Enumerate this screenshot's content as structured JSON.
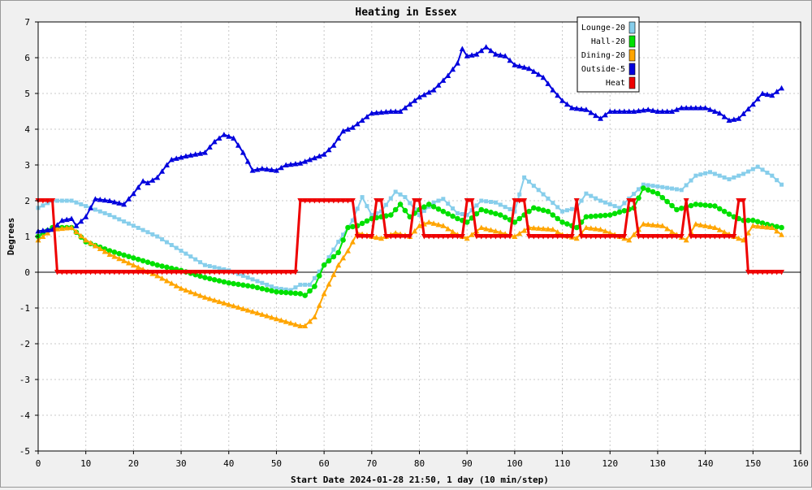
{
  "chart_data": {
    "type": "line",
    "title": "Heating in Essex",
    "xlabel": "Start Date 2024-01-28 21:50, 1 day (10 min/step)",
    "ylabel": "Degrees",
    "xlim": [
      0,
      160
    ],
    "ylim": [
      -5,
      7
    ],
    "x_ticks": [
      0,
      10,
      20,
      30,
      40,
      50,
      60,
      70,
      80,
      90,
      100,
      110,
      120,
      130,
      140,
      150,
      160
    ],
    "y_ticks": [
      -5,
      -4,
      -3,
      -2,
      -1,
      0,
      1,
      2,
      3,
      4,
      5,
      6,
      7
    ],
    "grid": true,
    "legend_position": "top-right",
    "series": [
      {
        "name": "Lounge-20",
        "color": "#87ceeb",
        "marker": "square",
        "points": [
          [
            0,
            1.8
          ],
          [
            3,
            2.0
          ],
          [
            7,
            2.0
          ],
          [
            10,
            1.85
          ],
          [
            15,
            1.6
          ],
          [
            20,
            1.3
          ],
          [
            25,
            1.0
          ],
          [
            30,
            0.6
          ],
          [
            35,
            0.2
          ],
          [
            40,
            0.05
          ],
          [
            45,
            -0.2
          ],
          [
            50,
            -0.45
          ],
          [
            53,
            -0.5
          ],
          [
            55,
            -0.35
          ],
          [
            57,
            -0.35
          ],
          [
            60,
            0.2
          ],
          [
            63,
            0.85
          ],
          [
            66,
            1.45
          ],
          [
            68,
            2.1
          ],
          [
            70,
            1.6
          ],
          [
            72,
            1.7
          ],
          [
            75,
            2.25
          ],
          [
            77,
            2.1
          ],
          [
            80,
            1.6
          ],
          [
            83,
            1.95
          ],
          [
            85,
            2.05
          ],
          [
            88,
            1.65
          ],
          [
            90,
            1.6
          ],
          [
            93,
            2.0
          ],
          [
            96,
            1.95
          ],
          [
            100,
            1.7
          ],
          [
            102,
            2.65
          ],
          [
            105,
            2.3
          ],
          [
            110,
            1.7
          ],
          [
            113,
            1.8
          ],
          [
            115,
            2.2
          ],
          [
            118,
            2.0
          ],
          [
            122,
            1.8
          ],
          [
            127,
            2.45
          ],
          [
            130,
            2.4
          ],
          [
            135,
            2.3
          ],
          [
            138,
            2.7
          ],
          [
            141,
            2.8
          ],
          [
            145,
            2.6
          ],
          [
            148,
            2.75
          ],
          [
            151,
            2.95
          ],
          [
            154,
            2.7
          ],
          [
            156,
            2.45
          ]
        ]
      },
      {
        "name": "Hall-20",
        "color": "#00e000",
        "marker": "circle",
        "points": [
          [
            0,
            1.0
          ],
          [
            3,
            1.25
          ],
          [
            7,
            1.25
          ],
          [
            10,
            0.85
          ],
          [
            15,
            0.6
          ],
          [
            20,
            0.4
          ],
          [
            25,
            0.2
          ],
          [
            30,
            0.05
          ],
          [
            35,
            -0.15
          ],
          [
            40,
            -0.3
          ],
          [
            45,
            -0.4
          ],
          [
            50,
            -0.55
          ],
          [
            55,
            -0.6
          ],
          [
            56,
            -0.65
          ],
          [
            58,
            -0.4
          ],
          [
            60,
            0.2
          ],
          [
            63,
            0.55
          ],
          [
            65,
            1.25
          ],
          [
            67,
            1.3
          ],
          [
            70,
            1.5
          ],
          [
            74,
            1.6
          ],
          [
            76,
            1.9
          ],
          [
            78,
            1.55
          ],
          [
            80,
            1.75
          ],
          [
            82,
            1.9
          ],
          [
            85,
            1.7
          ],
          [
            88,
            1.5
          ],
          [
            90,
            1.4
          ],
          [
            93,
            1.75
          ],
          [
            97,
            1.6
          ],
          [
            100,
            1.4
          ],
          [
            104,
            1.8
          ],
          [
            107,
            1.7
          ],
          [
            110,
            1.4
          ],
          [
            113,
            1.25
          ],
          [
            115,
            1.55
          ],
          [
            120,
            1.6
          ],
          [
            125,
            1.8
          ],
          [
            127,
            2.35
          ],
          [
            130,
            2.2
          ],
          [
            134,
            1.75
          ],
          [
            138,
            1.9
          ],
          [
            142,
            1.85
          ],
          [
            146,
            1.55
          ],
          [
            148,
            1.45
          ],
          [
            150,
            1.45
          ],
          [
            154,
            1.3
          ],
          [
            156,
            1.25
          ]
        ]
      },
      {
        "name": "Dining-20",
        "color": "#ffa500",
        "marker": "triangle",
        "points": [
          [
            0,
            0.9
          ],
          [
            3,
            1.2
          ],
          [
            7,
            1.25
          ],
          [
            10,
            0.9
          ],
          [
            15,
            0.5
          ],
          [
            20,
            0.2
          ],
          [
            25,
            -0.1
          ],
          [
            30,
            -0.45
          ],
          [
            35,
            -0.7
          ],
          [
            40,
            -0.9
          ],
          [
            45,
            -1.1
          ],
          [
            50,
            -1.3
          ],
          [
            55,
            -1.5
          ],
          [
            56,
            -1.5
          ],
          [
            58,
            -1.25
          ],
          [
            60,
            -0.6
          ],
          [
            63,
            0.2
          ],
          [
            65,
            0.6
          ],
          [
            67,
            1.1
          ],
          [
            70,
            1.0
          ],
          [
            72,
            0.95
          ],
          [
            75,
            1.1
          ],
          [
            78,
            1.0
          ],
          [
            80,
            1.3
          ],
          [
            82,
            1.4
          ],
          [
            85,
            1.3
          ],
          [
            88,
            1.05
          ],
          [
            90,
            0.95
          ],
          [
            93,
            1.25
          ],
          [
            96,
            1.15
          ],
          [
            100,
            1.0
          ],
          [
            103,
            1.25
          ],
          [
            108,
            1.2
          ],
          [
            110,
            1.05
          ],
          [
            113,
            0.95
          ],
          [
            115,
            1.25
          ],
          [
            118,
            1.2
          ],
          [
            122,
            1.0
          ],
          [
            124,
            0.9
          ],
          [
            127,
            1.35
          ],
          [
            131,
            1.3
          ],
          [
            134,
            1.05
          ],
          [
            136,
            0.9
          ],
          [
            138,
            1.35
          ],
          [
            142,
            1.25
          ],
          [
            146,
            1.0
          ],
          [
            148,
            0.9
          ],
          [
            150,
            1.3
          ],
          [
            154,
            1.25
          ],
          [
            156,
            1.05
          ]
        ]
      },
      {
        "name": "Outside-5",
        "color": "#0000dd",
        "marker": "triangle",
        "points": [
          [
            0,
            1.15
          ],
          [
            3,
            1.2
          ],
          [
            5,
            1.45
          ],
          [
            7,
            1.5
          ],
          [
            8,
            1.3
          ],
          [
            10,
            1.55
          ],
          [
            12,
            2.05
          ],
          [
            15,
            2.0
          ],
          [
            18,
            1.9
          ],
          [
            20,
            2.2
          ],
          [
            22,
            2.55
          ],
          [
            23,
            2.5
          ],
          [
            25,
            2.65
          ],
          [
            27,
            3.0
          ],
          [
            28,
            3.15
          ],
          [
            31,
            3.25
          ],
          [
            35,
            3.35
          ],
          [
            37,
            3.65
          ],
          [
            39,
            3.85
          ],
          [
            41,
            3.75
          ],
          [
            43,
            3.35
          ],
          [
            45,
            2.85
          ],
          [
            47,
            2.9
          ],
          [
            50,
            2.85
          ],
          [
            52,
            3.0
          ],
          [
            55,
            3.05
          ],
          [
            60,
            3.3
          ],
          [
            62,
            3.55
          ],
          [
            64,
            3.95
          ],
          [
            66,
            4.05
          ],
          [
            70,
            4.45
          ],
          [
            74,
            4.5
          ],
          [
            76,
            4.5
          ],
          [
            80,
            4.9
          ],
          [
            83,
            5.1
          ],
          [
            86,
            5.5
          ],
          [
            88,
            5.85
          ],
          [
            89,
            6.25
          ],
          [
            90,
            6.05
          ],
          [
            92,
            6.1
          ],
          [
            94,
            6.3
          ],
          [
            96,
            6.1
          ],
          [
            98,
            6.05
          ],
          [
            100,
            5.8
          ],
          [
            103,
            5.7
          ],
          [
            106,
            5.45
          ],
          [
            108,
            5.1
          ],
          [
            110,
            4.8
          ],
          [
            112,
            4.6
          ],
          [
            115,
            4.55
          ],
          [
            118,
            4.3
          ],
          [
            120,
            4.5
          ],
          [
            125,
            4.5
          ],
          [
            128,
            4.55
          ],
          [
            130,
            4.5
          ],
          [
            133,
            4.5
          ],
          [
            135,
            4.6
          ],
          [
            140,
            4.6
          ],
          [
            143,
            4.45
          ],
          [
            145,
            4.25
          ],
          [
            147,
            4.3
          ],
          [
            150,
            4.7
          ],
          [
            152,
            5.0
          ],
          [
            154,
            4.95
          ],
          [
            156,
            5.15
          ]
        ]
      },
      {
        "name": "Heat",
        "color": "#ee0000",
        "marker": "triangle-down",
        "points": [
          [
            0,
            2
          ],
          [
            3,
            2
          ],
          [
            4,
            0
          ],
          [
            54,
            0
          ],
          [
            55,
            2
          ],
          [
            66,
            2
          ],
          [
            67,
            1
          ],
          [
            70,
            1
          ],
          [
            71,
            2
          ],
          [
            72,
            2
          ],
          [
            73,
            1
          ],
          [
            78,
            1
          ],
          [
            79,
            2
          ],
          [
            80,
            2
          ],
          [
            81,
            1
          ],
          [
            89,
            1
          ],
          [
            90,
            2
          ],
          [
            91,
            2
          ],
          [
            92,
            1
          ],
          [
            99,
            1
          ],
          [
            100,
            2
          ],
          [
            102,
            2
          ],
          [
            103,
            1
          ],
          [
            112,
            1
          ],
          [
            113,
            2
          ],
          [
            114,
            1
          ],
          [
            123,
            1
          ],
          [
            124,
            2
          ],
          [
            125,
            2
          ],
          [
            126,
            1
          ],
          [
            135,
            1
          ],
          [
            136,
            2
          ],
          [
            137,
            1
          ],
          [
            146,
            1
          ],
          [
            147,
            2
          ],
          [
            148,
            2
          ],
          [
            149,
            0
          ],
          [
            156,
            0
          ]
        ]
      }
    ]
  }
}
